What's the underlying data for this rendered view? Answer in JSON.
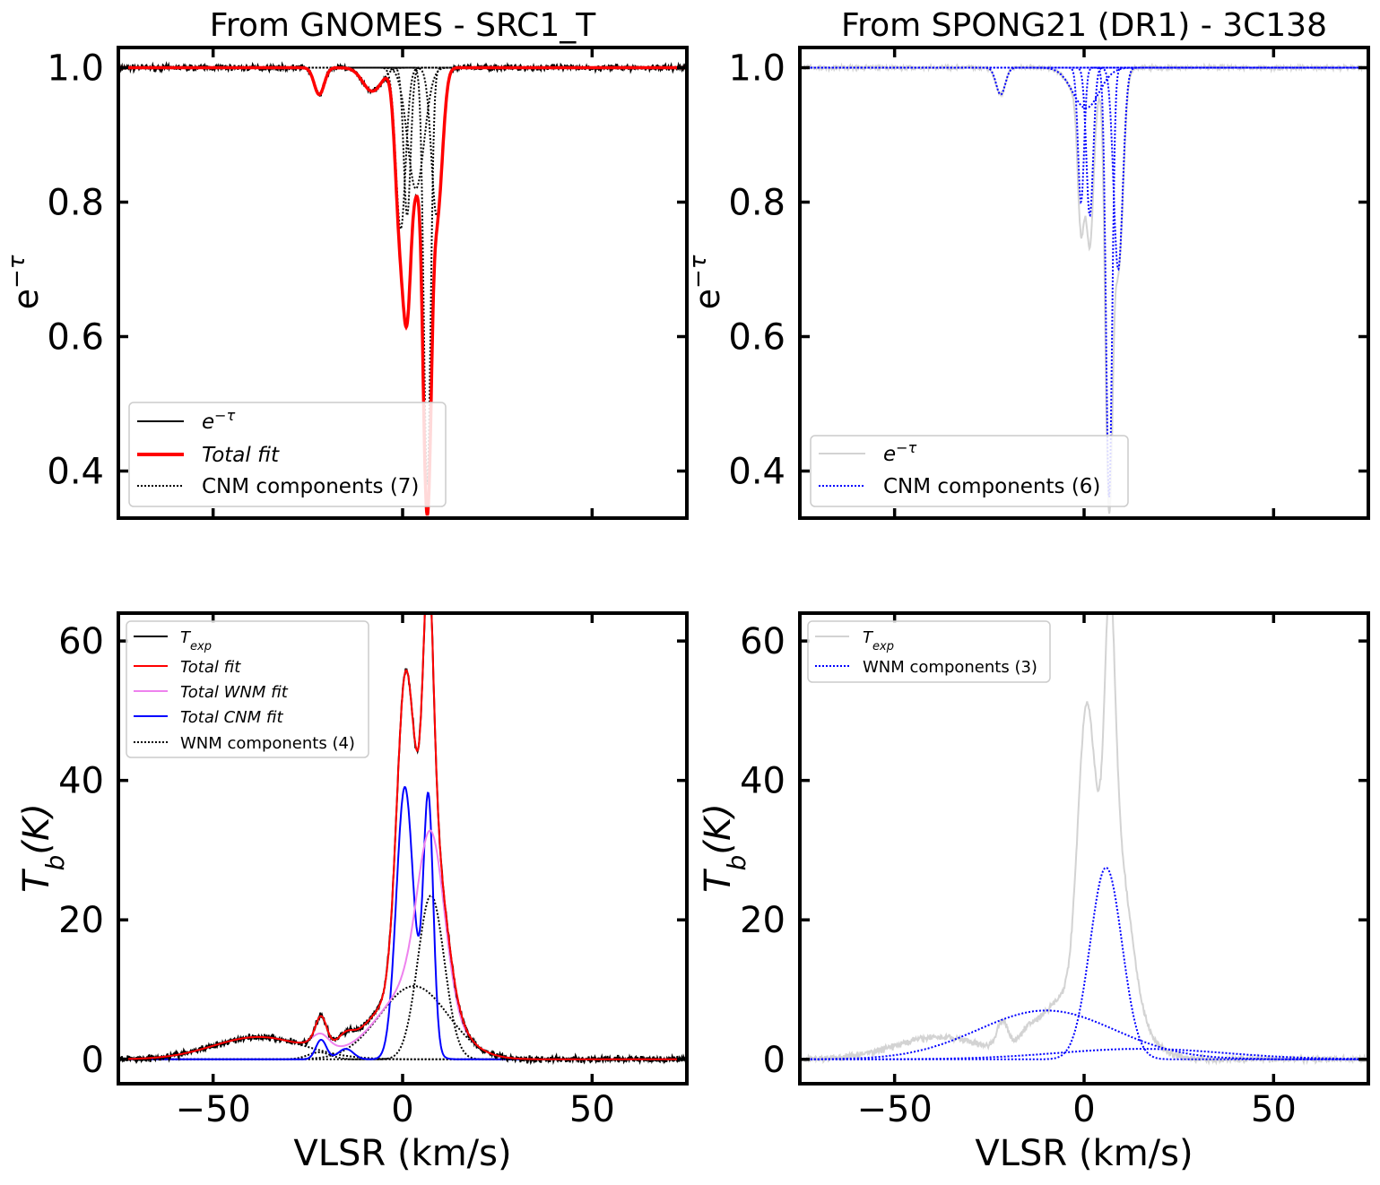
{
  "chart_data": [
    {
      "id": "top-left",
      "type": "line",
      "title": "From GNOMES - SRC1_T",
      "ylabel_base": "e",
      "ylabel_exp": "−τ",
      "xlim": [
        -75,
        75
      ],
      "ylim": [
        0.33,
        1.03
      ],
      "xticks": [
        -50,
        0,
        50
      ],
      "xtick_labels": [],
      "yticks": [
        0.4,
        0.6,
        0.8,
        1.0
      ],
      "ytick_labels": [
        "0.4",
        "0.6",
        "0.8",
        "1.0"
      ],
      "legend_position": "lower-left",
      "baseline": 1.0,
      "noise": 0.004,
      "components": [
        {
          "amp": 0.04,
          "center": -22,
          "width": 1.3
        },
        {
          "amp": 0.035,
          "center": -8,
          "width": 2.5
        },
        {
          "amp": 0.24,
          "center": -0.5,
          "width": 1.3
        },
        {
          "amp": 0.22,
          "center": 1.2,
          "width": 0.9
        },
        {
          "amp": 0.18,
          "center": 3.5,
          "width": 2.2
        },
        {
          "amp": 0.62,
          "center": 6.5,
          "width": 0.9
        },
        {
          "amp": 0.22,
          "center": 9.0,
          "width": 1.4
        }
      ],
      "series": [
        {
          "name_base": "e",
          "name_exp": "−τ",
          "role": "observed",
          "color": "#000000",
          "style": "solid"
        },
        {
          "name": "Total fit",
          "italic": true,
          "role": "fit",
          "color": "#ff0000",
          "style": "solid"
        },
        {
          "name": "CNM components (7)",
          "role": "components",
          "color": "#000000",
          "style": "dotted"
        }
      ]
    },
    {
      "id": "top-right",
      "type": "line",
      "title": "From SPONG21 (DR1) - 3C138",
      "ylabel_base": "e",
      "ylabel_exp": "−τ",
      "xlim": [
        -75,
        75
      ],
      "ylim": [
        0.33,
        1.03
      ],
      "xticks": [
        -50,
        0,
        50
      ],
      "xtick_labels": [],
      "yticks": [
        0.4,
        0.6,
        0.8,
        1.0
      ],
      "ytick_labels": [
        "0.4",
        "0.6",
        "0.8",
        "1.0"
      ],
      "legend_position": "lower-left",
      "baseline": 1.0,
      "noise": 0.003,
      "components": [
        {
          "amp": 0.04,
          "center": -22,
          "width": 1.2
        },
        {
          "amp": 0.06,
          "center": 0.5,
          "width": 3.5
        },
        {
          "amp": 0.2,
          "center": -0.8,
          "width": 0.8
        },
        {
          "amp": 0.22,
          "center": 1.5,
          "width": 0.9
        },
        {
          "amp": 0.64,
          "center": 6.6,
          "width": 0.8
        },
        {
          "amp": 0.3,
          "center": 9.0,
          "width": 1.2
        }
      ],
      "series": [
        {
          "name_base": "e",
          "name_exp": "−τ",
          "role": "observed",
          "color": "#d3d3d3",
          "style": "solid"
        },
        {
          "name": "CNM components (6)",
          "role": "components",
          "color": "#0000ff",
          "style": "dotted"
        }
      ]
    },
    {
      "id": "bottom-left",
      "type": "line",
      "xlabel": "VLSR (km/s)",
      "ylabel_main": "T",
      "ylabel_sub": "b",
      "ylabel_rest": "(K)",
      "xlim": [
        -75,
        75
      ],
      "ylim": [
        -3.5,
        64
      ],
      "xticks": [
        -50,
        0,
        50
      ],
      "xtick_labels": [
        "−50",
        "0",
        "50"
      ],
      "yticks": [
        0,
        20,
        40,
        60
      ],
      "ytick_labels": [
        "0",
        "20",
        "40",
        "60"
      ],
      "legend_position": "upper-left",
      "noise": 0.45,
      "wnm_components": [
        {
          "amp": 3.2,
          "center": -38,
          "width": 12
        },
        {
          "amp": 1.0,
          "center": -22,
          "width": 3
        },
        {
          "amp": 10.5,
          "center": 3,
          "width": 9
        },
        {
          "amp": 23.5,
          "center": 7.5,
          "width": 3.5
        }
      ],
      "cnm_components": [
        {
          "amp": 2.8,
          "center": -21.5,
          "width": 1.4
        },
        {
          "amp": 1.5,
          "center": -15,
          "width": 2
        },
        {
          "amp": 37,
          "center": 0.5,
          "width": 2.2
        },
        {
          "amp": 35,
          "center": 6.8,
          "width": 1.3
        },
        {
          "amp": 4,
          "center": 4,
          "width": 3
        }
      ],
      "extra_observed": [
        {
          "amp": 2.5,
          "center": -21.5,
          "width": 1.6
        },
        {
          "amp": 3,
          "center": -9,
          "width": 5
        },
        {
          "amp": 8,
          "center": 1.5,
          "width": 2.5
        },
        {
          "amp": 4,
          "center": 12,
          "width": 3
        }
      ],
      "series": [
        {
          "name_main": "T",
          "name_sub": "exp",
          "role": "observed",
          "color": "#000000",
          "style": "solid"
        },
        {
          "name": "Total fit",
          "italic": true,
          "role": "fit",
          "color": "#ff0000",
          "style": "solid"
        },
        {
          "name": "Total WNM fit",
          "italic": true,
          "role": "wnm_total",
          "color": "#ee82ee",
          "style": "solid"
        },
        {
          "name": "Total CNM fit",
          "italic": true,
          "role": "cnm_total",
          "color": "#0000ff",
          "style": "solid"
        },
        {
          "name": "WNM components (4)",
          "role": "components",
          "color": "#000000",
          "style": "dotted"
        }
      ]
    },
    {
      "id": "bottom-right",
      "type": "line",
      "xlabel": "VLSR (km/s)",
      "ylabel_main": "T",
      "ylabel_sub": "b",
      "ylabel_rest": "(K)",
      "xlim": [
        -75,
        75
      ],
      "ylim": [
        -3.5,
        64
      ],
      "xticks": [
        -50,
        0,
        50
      ],
      "xtick_labels": [
        "−50",
        "0",
        "50"
      ],
      "yticks": [
        0,
        20,
        40,
        60
      ],
      "ytick_labels": [
        "0",
        "20",
        "40",
        "60"
      ],
      "legend_position": "upper-left",
      "noise": 0.45,
      "wnm_components": [
        {
          "amp": 7,
          "center": -10,
          "width": 18
        },
        {
          "amp": 27.5,
          "center": 5.8,
          "width": 4.2
        },
        {
          "amp": 1.5,
          "center": 15,
          "width": 22
        }
      ],
      "observed_components": [
        {
          "amp": 3.2,
          "center": -38,
          "width": 12
        },
        {
          "amp": 3.8,
          "center": -21.5,
          "width": 1.5
        },
        {
          "amp": 1.5,
          "center": -15,
          "width": 2
        },
        {
          "amp": 10.5,
          "center": 3,
          "width": 9
        },
        {
          "amp": 23.5,
          "center": 7.5,
          "width": 3.5
        },
        {
          "amp": 37,
          "center": 0.5,
          "width": 2.2
        },
        {
          "amp": 35,
          "center": 6.8,
          "width": 1.3
        },
        {
          "amp": 3,
          "center": -9,
          "width": 5
        },
        {
          "amp": 4,
          "center": 12,
          "width": 3
        }
      ],
      "series": [
        {
          "name_main": "T",
          "name_sub": "exp",
          "role": "observed",
          "color": "#d3d3d3",
          "style": "solid"
        },
        {
          "name": "WNM components (3)",
          "role": "components",
          "color": "#0000ff",
          "style": "dotted"
        }
      ]
    }
  ]
}
